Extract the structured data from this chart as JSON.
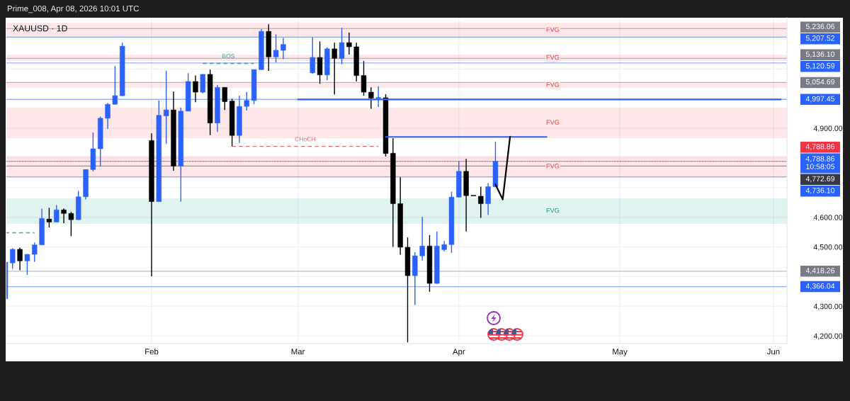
{
  "chart_data": {
    "type": "candlestick",
    "title": "XAUUSD · 1D",
    "subtitle": "Prime_008, Apr 08, 2026 10:01 UTC",
    "categories": [
      null,
      null,
      null,
      null,
      null,
      null,
      null,
      null,
      null,
      null,
      null,
      null,
      null,
      null,
      null,
      null,
      null,
      null,
      null,
      null,
      "Feb",
      null,
      null,
      null,
      null,
      null,
      null,
      null,
      null,
      null,
      null,
      null,
      null,
      null,
      null,
      null,
      null,
      null,
      null,
      null,
      "Mar",
      null,
      null,
      null,
      null,
      null,
      null,
      null,
      null,
      null,
      null,
      null,
      null,
      null,
      null,
      null,
      null,
      null,
      null,
      null,
      null,
      null,
      "Apr",
      null,
      null,
      null,
      null,
      null,
      null,
      null,
      null,
      null,
      null,
      null,
      null,
      null,
      null,
      null,
      null,
      null,
      null,
      null,
      null,
      null,
      "May",
      null,
      null,
      null,
      null,
      null,
      null,
      null,
      null,
      null,
      null,
      null,
      null,
      null,
      null,
      null,
      null,
      null,
      null,
      null,
      null,
      "Jun",
      null
    ],
    "ohlc": [
      [
        4325,
        4449,
        4325,
        4449
      ],
      [
        4446,
        4496,
        4426,
        4492
      ],
      [
        4492,
        4498,
        4421,
        4453
      ],
      [
        4453,
        4476,
        4406,
        4475
      ],
      [
        4475,
        4515,
        4450,
        4507
      ],
      [
        4507,
        4629,
        4506,
        4596
      ],
      [
        4594,
        4632,
        4566,
        4584
      ],
      [
        4584,
        4641,
        4584,
        4625
      ],
      [
        4625,
        4630,
        4580,
        4613
      ],
      [
        4613,
        4618,
        4536,
        4592
      ],
      [
        4592,
        4689,
        4591,
        4669
      ],
      [
        4669,
        4762,
        4660,
        4761
      ],
      [
        4761,
        4886,
        4755,
        4831
      ],
      [
        4831,
        4940,
        4771,
        4934
      ],
      [
        4934,
        4986,
        4898,
        4981
      ],
      [
        4981,
        5110,
        4980,
        5010
      ],
      [
        5010,
        5189,
        5009,
        5177
      ],
      null,
      null,
      null,
      [
        4859,
        4883,
        4401,
        4653
      ],
      [
        4653,
        4994,
        4653,
        4944
      ],
      [
        4942,
        5094,
        4848,
        4962
      ],
      [
        4962,
        5024,
        4757,
        4773
      ],
      [
        4773,
        4970,
        4653,
        4958
      ],
      [
        4958,
        5086,
        4958,
        5058
      ],
      [
        5058,
        5078,
        4988,
        5022
      ],
      [
        5022,
        5083,
        5018,
        5082
      ],
      [
        5082,
        5098,
        4877,
        4918
      ],
      [
        4918,
        5046,
        4888,
        5038
      ],
      [
        5038,
        5038,
        4962,
        4990
      ],
      [
        4992,
        5000,
        4839,
        4876
      ],
      [
        4876,
        5010,
        4851,
        4974
      ],
      [
        4974,
        5022,
        4960,
        4994
      ],
      [
        4994,
        5098,
        4982,
        5098
      ],
      [
        5098,
        5235,
        5097,
        5227
      ],
      [
        5227,
        5251,
        5094,
        5141
      ],
      [
        5141,
        5217,
        5122,
        5163
      ],
      [
        5163,
        5205,
        5133,
        5183
      ],
      null,
      null,
      null,
      [
        5087,
        5207,
        5084,
        5139
      ],
      [
        5139,
        5193,
        5050,
        5080
      ],
      [
        5080,
        5173,
        5062,
        5168
      ],
      [
        5168,
        5189,
        5014,
        5136
      ],
      [
        5136,
        5239,
        5116,
        5189
      ],
      [
        5189,
        5223,
        5149,
        5175
      ],
      [
        5175,
        5189,
        5058,
        5078
      ],
      [
        5078,
        5127,
        5010,
        5022
      ],
      [
        5022,
        5038,
        4966,
        5002
      ],
      [
        5001,
        5042,
        4972,
        5004
      ],
      [
        5003,
        5015,
        4805,
        4815
      ],
      [
        4816,
        4867,
        4500,
        4646
      ],
      [
        4646,
        4735,
        4474,
        4499
      ],
      [
        4499,
        4532,
        4178,
        4403
      ],
      [
        4403,
        4482,
        4304,
        4470
      ],
      [
        4470,
        4601,
        4454,
        4503
      ],
      [
        4503,
        4540,
        4349,
        4377
      ],
      [
        4377,
        4552,
        4376,
        4503
      ],
      [
        4491,
        4520,
        4485,
        4508
      ],
      [
        4508,
        4686,
        4480,
        4668
      ],
      [
        4668,
        4789,
        4667,
        4755
      ],
      [
        4755,
        4797,
        4552,
        4673
      ],
      [
        4674,
        4674,
        4672,
        4672
      ],
      [
        4671,
        4703,
        4598,
        4646
      ],
      [
        4646,
        4715,
        4608,
        4703
      ],
      [
        4703,
        4855,
        4703,
        4788.86
      ],
      null,
      null,
      null,
      null,
      null,
      null,
      null,
      null,
      null,
      null,
      null,
      null,
      null,
      null,
      null,
      null,
      null,
      null,
      null,
      null,
      null,
      null,
      null,
      null,
      null,
      null,
      null,
      null,
      null,
      null,
      null,
      null,
      null,
      null,
      null,
      null,
      null,
      null,
      null
    ],
    "colors": [
      "#2962ff",
      "#2962ff",
      "#000000",
      "#2962ff",
      "#2962ff",
      "#2962ff",
      "#000000",
      "#2962ff",
      "#000000",
      "#000000",
      "#2962ff",
      "#2962ff",
      "#2962ff",
      "#2962ff",
      "#2962ff",
      "#2962ff",
      "#2962ff",
      null,
      null,
      null,
      "#000000",
      "#2962ff",
      "#2962ff",
      "#000000",
      "#2962ff",
      "#2962ff",
      "#000000",
      "#2962ff",
      "#000000",
      "#2962ff",
      "#000000",
      "#000000",
      "#2962ff",
      "#2962ff",
      "#2962ff",
      "#2962ff",
      "#000000",
      "#2962ff",
      "#2962ff",
      null,
      null,
      null,
      "#2962ff",
      "#000000",
      "#2962ff",
      "#000000",
      "#2962ff",
      "#000000",
      "#000000",
      "#000000",
      "#000000",
      "#2962ff",
      "#000000",
      "#000000",
      "#000000",
      "#000000",
      "#2962ff",
      "#2962ff",
      "#000000",
      "#2962ff",
      "#2962ff",
      "#2962ff",
      "#2962ff",
      "#000000",
      "#000000",
      "#000000",
      "#2962ff",
      "#2962ff",
      null,
      null,
      null,
      null,
      null,
      null,
      null,
      null,
      null,
      null,
      null,
      null,
      null,
      null,
      null,
      null,
      null,
      null,
      null,
      null,
      null,
      null,
      null,
      null,
      null,
      null,
      null,
      null,
      null,
      null,
      null,
      null,
      null,
      null,
      null,
      null,
      null,
      null,
      null
    ],
    "series": [
      {
        "type": "line",
        "color": "#5b9c9c",
        "line_style": "dashed",
        "values": [
          4548,
          4548,
          4548,
          4548,
          4548,
          null,
          null,
          null,
          null,
          null,
          null,
          null,
          null,
          null,
          null,
          null,
          null,
          null,
          null,
          null,
          null,
          null,
          null,
          null,
          null,
          null,
          null,
          null,
          null,
          null,
          null,
          null,
          null,
          null,
          null,
          null,
          null,
          null,
          null,
          null,
          null,
          null,
          null,
          null,
          null,
          null,
          null,
          null,
          null,
          null,
          null,
          null,
          null,
          null,
          null,
          null,
          null,
          null,
          null,
          null,
          null,
          null,
          null,
          null,
          null,
          null,
          null,
          null,
          null,
          null,
          null,
          null,
          null,
          null,
          null,
          null,
          null,
          null,
          null,
          null,
          null,
          null,
          null,
          null,
          null,
          null,
          null,
          null,
          null,
          null,
          null,
          null,
          null,
          null,
          null,
          null,
          null,
          null,
          null,
          null,
          null,
          null,
          null,
          null,
          null,
          null,
          null
        ]
      },
      {
        "type": "line",
        "name": "BOS",
        "color": "#4a9c9c",
        "line_style": "dashed",
        "values": [
          null,
          null,
          null,
          null,
          null,
          null,
          null,
          null,
          null,
          null,
          null,
          null,
          null,
          null,
          null,
          null,
          null,
          null,
          null,
          null,
          null,
          null,
          null,
          null,
          null,
          null,
          null,
          5119,
          5119,
          5119,
          5119,
          5119,
          5119,
          5119,
          5119,
          null,
          null,
          null,
          null,
          null,
          null,
          null,
          null,
          null,
          null,
          null,
          null,
          null,
          null,
          null,
          null,
          null,
          null,
          null,
          null,
          null,
          null,
          null,
          null,
          null,
          null,
          null,
          null,
          null,
          null,
          null,
          null,
          null,
          null,
          null,
          null,
          null,
          null,
          null,
          null,
          null,
          null,
          null,
          null,
          null,
          null,
          null,
          null,
          null,
          null,
          null,
          null,
          null,
          null,
          null,
          null,
          null,
          null,
          null,
          null,
          null,
          null,
          null,
          null,
          null,
          null,
          null,
          null,
          null,
          null,
          null,
          null
        ]
      },
      {
        "type": "line",
        "name": "CHoCH",
        "color": "#e06c75",
        "line_style": "dashed",
        "values": [
          null,
          null,
          null,
          null,
          null,
          null,
          null,
          null,
          null,
          null,
          null,
          null,
          null,
          null,
          null,
          null,
          null,
          null,
          null,
          null,
          null,
          null,
          null,
          null,
          null,
          null,
          null,
          null,
          null,
          null,
          null,
          4839,
          4839,
          4839,
          4839,
          4839,
          4839,
          4839,
          4839,
          4839,
          4839,
          4839,
          4839,
          4839,
          4839,
          4839,
          4839,
          4839,
          4839,
          4839,
          4839,
          4839,
          null,
          null,
          null,
          null,
          null,
          null,
          null,
          null,
          null,
          null,
          null,
          null,
          null,
          null,
          null,
          null,
          null,
          null,
          null,
          null,
          null,
          null,
          null,
          null,
          null,
          null,
          null,
          null,
          null,
          null,
          null,
          null,
          null,
          null,
          null,
          null,
          null,
          null,
          null,
          null,
          null,
          null,
          null,
          null,
          null,
          null,
          null,
          null,
          null,
          null,
          null,
          null,
          null,
          null,
          null
        ]
      },
      {
        "type": "line",
        "color": "#2962ff",
        "line_style": "solid",
        "values": [
          null,
          null,
          null,
          null,
          null,
          null,
          null,
          null,
          null,
          null,
          null,
          null,
          null,
          null,
          null,
          null,
          null,
          null,
          null,
          null,
          null,
          null,
          null,
          null,
          null,
          null,
          null,
          null,
          null,
          null,
          null,
          null,
          null,
          null,
          null,
          null,
          null,
          null,
          null,
          null,
          4997.45,
          4997.45,
          4997.45,
          4997.45,
          4997.45,
          4997.45,
          4997.45,
          4997.45,
          4997.45,
          4997.45,
          4997.45,
          4997.45,
          4997.45,
          4997.45,
          4997.45,
          4997.45,
          4997.45,
          4997.45,
          4997.45,
          4997.45,
          4997.45,
          4997.45,
          4997.45,
          4997.45,
          4997.45,
          4997.45,
          4997.45,
          4997.45,
          4997.45,
          4997.45,
          4997.45,
          4997.45,
          4997.45,
          4997.45,
          4997.45,
          4997.45,
          4997.45,
          4997.45,
          4997.45,
          4997.45,
          4997.45,
          4997.45,
          4997.45,
          4997.45,
          4997.45,
          4997.45,
          4997.45,
          4997.45,
          4997.45,
          4997.45,
          4997.45,
          4997.45,
          4997.45,
          4997.45,
          4997.45,
          4997.45,
          4997.45,
          4997.45,
          4997.45,
          4997.45,
          4997.45,
          4997.45,
          4997.45,
          4997.45,
          4997.45,
          4997.45,
          4997.45
        ]
      },
      {
        "type": "line",
        "color": "#2962ff",
        "line_style": "solid",
        "values": [
          null,
          null,
          null,
          null,
          null,
          null,
          null,
          null,
          null,
          null,
          null,
          null,
          null,
          null,
          null,
          null,
          null,
          null,
          null,
          null,
          null,
          null,
          null,
          null,
          null,
          null,
          null,
          null,
          null,
          null,
          null,
          null,
          null,
          null,
          null,
          null,
          null,
          null,
          null,
          null,
          null,
          null,
          null,
          null,
          null,
          null,
          null,
          null,
          null,
          null,
          null,
          null,
          4871,
          4871,
          4871,
          4871,
          4871,
          4871,
          4871,
          4871,
          4871,
          4871,
          4871,
          4871,
          4871,
          4871,
          4871,
          4871,
          4871,
          4871,
          4871,
          4871,
          4871,
          4871,
          4871,
          null,
          null,
          null,
          null,
          null,
          null,
          null,
          null,
          null,
          null,
          null,
          null,
          null,
          null,
          null,
          null,
          null,
          null,
          null,
          null,
          null,
          null,
          null,
          null,
          null,
          null,
          null,
          null,
          null,
          null,
          null,
          null
        ]
      },
      {
        "type": "line",
        "color": "#000000",
        "line_style": "solid",
        "values": [
          null,
          null,
          null,
          null,
          null,
          null,
          null,
          null,
          null,
          null,
          null,
          null,
          null,
          null,
          null,
          null,
          null,
          null,
          null,
          null,
          null,
          null,
          null,
          null,
          null,
          null,
          null,
          null,
          null,
          null,
          null,
          null,
          null,
          null,
          null,
          null,
          null,
          null,
          null,
          null,
          null,
          null,
          null,
          null,
          null,
          null,
          null,
          null,
          null,
          null,
          null,
          null,
          null,
          null,
          null,
          null,
          null,
          null,
          null,
          null,
          null,
          null,
          null,
          null,
          null,
          null,
          null,
          4711,
          4660,
          4872,
          null,
          null,
          null,
          null,
          null,
          null,
          null,
          null,
          null,
          null,
          null,
          null,
          null,
          null,
          null,
          null,
          null,
          null,
          null,
          null,
          null,
          null,
          null,
          null,
          null,
          null,
          null,
          null,
          null,
          null,
          null,
          null,
          null,
          null,
          null,
          null,
          null
        ]
      }
    ],
    "bands": [
      {
        "axis": "y",
        "from": 5205,
        "to": 5257,
        "label": "FVG",
        "color": "#f23645"
      },
      {
        "axis": "y",
        "from": 5127,
        "to": 5148,
        "label": "FVG",
        "color": "#f23645"
      },
      {
        "axis": "y",
        "from": 5036,
        "to": 5055,
        "label": "FVG",
        "color": "#f23645"
      },
      {
        "axis": "y",
        "from": 4867,
        "to": 4970,
        "label": "FVG",
        "color": "#f23645"
      },
      {
        "axis": "y",
        "from": 4735,
        "to": 4807,
        "label": "FVG",
        "color": "#f23645"
      },
      {
        "axis": "y",
        "from": 4578,
        "to": 4664,
        "label": "FVG",
        "color": "#089981"
      }
    ],
    "ref_lines": [
      {
        "axis": "y",
        "value": 5236.06,
        "label": "5,236.06",
        "color": "#787b86"
      },
      {
        "axis": "y",
        "value": 5207.52,
        "label": "5,207.52",
        "color": "#2962ff"
      },
      {
        "axis": "y",
        "value": 5136.1,
        "label": "5,136.10",
        "color": "#787b86"
      },
      {
        "axis": "y",
        "value": 5120.59,
        "label": "5,120.59",
        "color": "#2962ff"
      },
      {
        "axis": "y",
        "value": 5054.69,
        "label": "5,054.69",
        "color": "#787b86"
      },
      {
        "axis": "y",
        "value": 4997.45,
        "label": "4,997.45",
        "color": "#2962ff"
      },
      {
        "axis": "y",
        "value": 4788.86,
        "label": "4,788.86",
        "color": "#f23645"
      },
      {
        "axis": "y",
        "value": 4788.86,
        "label": "4,788.86\n10:58:05",
        "color": "#2962ff",
        "line_style": "dotted"
      },
      {
        "axis": "y",
        "value": 4772.69,
        "label": "4,772.69",
        "color": "#363a45"
      },
      {
        "axis": "y",
        "value": 4736.1,
        "label": "4,736.10",
        "color": "#2962ff"
      },
      {
        "axis": "y",
        "value": 4418.26,
        "label": "4,418.26",
        "color": "#787b86"
      },
      {
        "axis": "y",
        "value": 4366.04,
        "label": "4,366.04",
        "color": "#2962ff"
      }
    ],
    "ylim": [
      4174,
      5273
    ],
    "yticks": [
      {
        "value": 4200,
        "label": "4,200.00"
      },
      {
        "value": 4300,
        "label": "4,300.00"
      },
      {
        "value": 4400,
        "label": null
      },
      {
        "value": 4500,
        "label": "4,500.00"
      },
      {
        "value": 4600,
        "label": "4,600.00"
      },
      {
        "value": 4700,
        "label": null
      },
      {
        "value": 4800,
        "label": null
      },
      {
        "value": 4900,
        "label": "4,900.00"
      },
      {
        "value": 5000,
        "label": null
      },
      {
        "value": 5100,
        "label": null
      },
      {
        "value": 5200,
        "label": null
      }
    ],
    "grid": true
  }
}
